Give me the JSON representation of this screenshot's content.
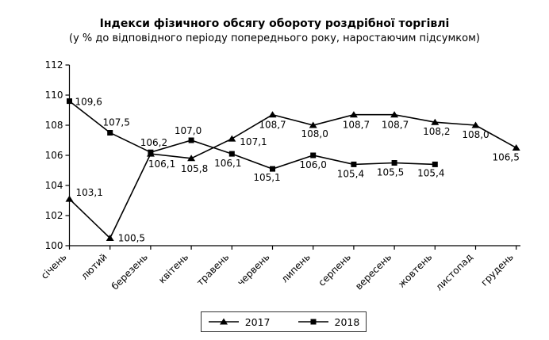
{
  "title": "Індекси фізичного обсягу обороту роздрібної торгівлі",
  "subtitle": "(у % до відповідного періоду попереднього року, наростаючим підсумком)",
  "chart_data": {
    "type": "line",
    "categories": [
      "січень",
      "лютий",
      "березень",
      "квітень",
      "травень",
      "червень",
      "липень",
      "серпень",
      "вересень",
      "жовтень",
      "листопад",
      "грудень"
    ],
    "series": [
      {
        "name": "2017",
        "marker": "triangle",
        "values": [
          103.1,
          100.5,
          106.1,
          105.8,
          107.1,
          108.7,
          108.0,
          108.7,
          108.7,
          108.2,
          108.0,
          106.5
        ],
        "labels": [
          "103,1",
          "100,5",
          "106,1",
          "105,8",
          "107,1",
          "108,7",
          "108,0",
          "108,7",
          "108,7",
          "108,2",
          "108,0",
          "106,5"
        ],
        "label_offsets": [
          [
            8,
            -4,
            "start"
          ],
          [
            10,
            4,
            "start"
          ],
          [
            -3,
            17,
            "start"
          ],
          [
            4,
            17,
            "middle"
          ],
          [
            10,
            8,
            "start"
          ],
          [
            0,
            17,
            "middle"
          ],
          [
            2,
            15,
            "middle"
          ],
          [
            3,
            17,
            "middle"
          ],
          [
            1,
            17,
            "middle"
          ],
          [
            2,
            16,
            "middle"
          ],
          [
            0,
            16,
            "middle"
          ],
          [
            -13,
            16,
            "middle"
          ]
        ]
      },
      {
        "name": "2018",
        "marker": "square",
        "values": [
          109.6,
          107.5,
          106.2,
          107.0,
          106.1,
          105.1,
          106.0,
          105.4,
          105.5,
          105.4,
          null,
          null
        ],
        "labels": [
          "109,6",
          "107,5",
          "106,2",
          "107,0",
          "106,1",
          "105,1",
          "106,0",
          "105,4",
          "105,5",
          "105,4",
          null,
          null
        ],
        "label_offsets": [
          [
            7,
            5,
            "start"
          ],
          [
            8,
            -9,
            "middle"
          ],
          [
            4,
            -8,
            "middle"
          ],
          [
            -4,
            -8,
            "middle"
          ],
          [
            -5,
            16,
            "middle"
          ],
          [
            -7,
            15,
            "middle"
          ],
          [
            0,
            16,
            "middle"
          ],
          [
            -4,
            16,
            "middle"
          ],
          [
            -5,
            16,
            "middle"
          ],
          [
            -5,
            15,
            "middle"
          ],
          [
            0,
            0,
            "middle"
          ],
          [
            0,
            0,
            "middle"
          ]
        ]
      }
    ],
    "ylim": [
      100,
      112
    ],
    "y_ticks": [
      100,
      102,
      104,
      106,
      108,
      110,
      112
    ],
    "grid": false,
    "legend_position": "bottom",
    "line_color": "#000000",
    "text_color": "#000000",
    "xlabel": "",
    "ylabel": ""
  },
  "legend": {
    "items": [
      {
        "label": "2017",
        "marker": "triangle"
      },
      {
        "label": "2018",
        "marker": "square"
      }
    ]
  }
}
